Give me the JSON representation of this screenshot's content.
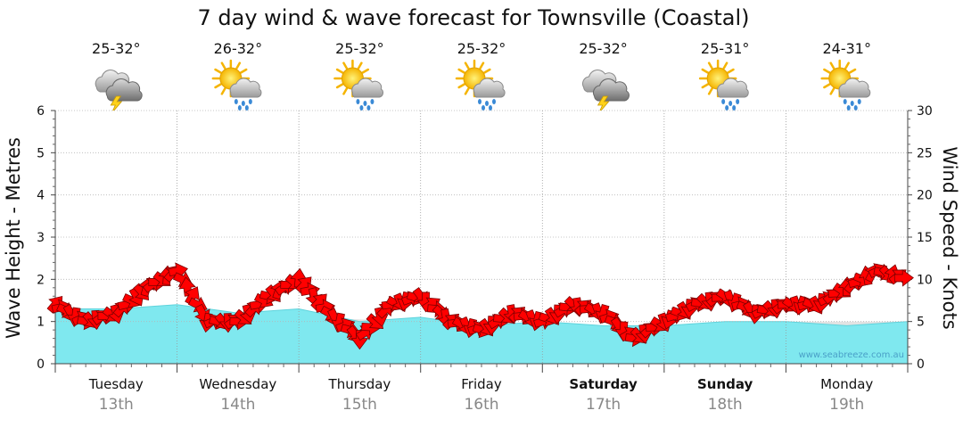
{
  "chart_data": {
    "type": "line",
    "title": "7 day wind & wave forecast for Townsville (Coastal)",
    "ylabel_left": "Wave Height - Metres",
    "ylabel_right": "Wind Speed - Knots",
    "y_left_lim": [
      0,
      6
    ],
    "y_left_ticks": [
      "0",
      "1",
      "2",
      "3",
      "4",
      "5",
      "6"
    ],
    "y_right_lim": [
      0,
      30
    ],
    "y_right_ticks": [
      "0",
      "5",
      "10",
      "15",
      "20",
      "25",
      "30"
    ],
    "grid": true,
    "watermark": "www.seabreeze.com.au",
    "days": [
      {
        "day": "Tuesday",
        "date": "13th",
        "temp": "25-32°",
        "icon": "storm-cloud-icon",
        "bold": false
      },
      {
        "day": "Wednesday",
        "date": "14th",
        "temp": "26-32°",
        "icon": "sun-rain-icon",
        "bold": false
      },
      {
        "day": "Thursday",
        "date": "15th",
        "temp": "25-32°",
        "icon": "sun-rain-icon",
        "bold": false
      },
      {
        "day": "Friday",
        "date": "16th",
        "temp": "25-32°",
        "icon": "sun-rain-icon",
        "bold": false
      },
      {
        "day": "Saturday",
        "date": "17th",
        "temp": "25-32°",
        "icon": "storm-cloud-icon",
        "bold": true
      },
      {
        "day": "Sunday",
        "date": "18th",
        "temp": "25-31°",
        "icon": "sun-rain-icon",
        "bold": true
      },
      {
        "day": "Monday",
        "date": "19th",
        "temp": "24-31°",
        "icon": "sun-rain-icon",
        "bold": false
      }
    ],
    "wave_series": {
      "name": "Wave height",
      "color": "#7fe8ef",
      "x_days": [
        0,
        0.5,
        1,
        1.5,
        2,
        2.5,
        3,
        3.5,
        4,
        4.5,
        5,
        5.5,
        6,
        6.5,
        7
      ],
      "values": [
        1.3,
        1.3,
        1.4,
        1.2,
        1.3,
        1.0,
        1.1,
        0.9,
        1.0,
        0.9,
        0.9,
        1.0,
        1.0,
        0.9,
        1.0
      ]
    },
    "swell_series": {
      "name": "Swell",
      "color": "#cccccc",
      "x_days": [
        0,
        1,
        2,
        3,
        4,
        5,
        6,
        7
      ],
      "values": [
        1.1,
        1.2,
        1.1,
        1.0,
        0.9,
        0.9,
        1.0,
        1.0
      ]
    },
    "wind_series": {
      "name": "Wind",
      "color": "#ff0000",
      "x_days": [
        0,
        0.25,
        0.5,
        0.75,
        1,
        1.25,
        1.5,
        1.75,
        2,
        2.25,
        2.5,
        2.75,
        3,
        3.25,
        3.5,
        3.75,
        4,
        4.25,
        4.5,
        4.75,
        5,
        5.25,
        5.5,
        5.75,
        6,
        6.25,
        6.5,
        6.75,
        7
      ],
      "knots": [
        7,
        5,
        6,
        9,
        11,
        5,
        5,
        8,
        10,
        6,
        3,
        7,
        8,
        5,
        4,
        6,
        5,
        7,
        6,
        3,
        5,
        7,
        8,
        6,
        7,
        7,
        9,
        11,
        10
      ]
    }
  }
}
